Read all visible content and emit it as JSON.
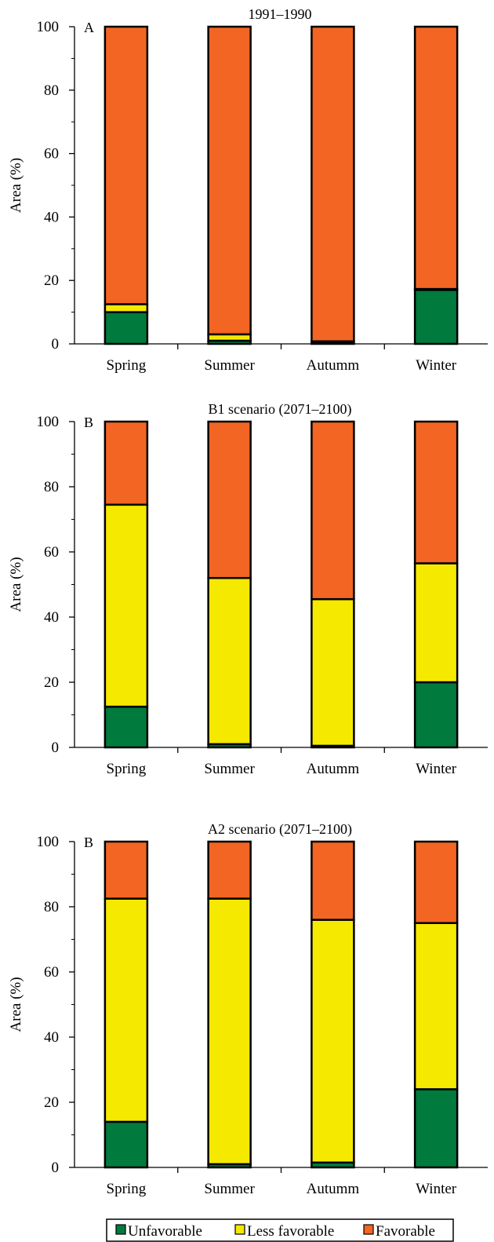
{
  "chart_data": [
    {
      "type": "bar",
      "stacked": true,
      "title": "1991–1990",
      "panel_label": "A",
      "xlabel": "",
      "ylabel": "Area (%)",
      "ylim": [
        0,
        100
      ],
      "y_ticks": [
        "0",
        "20",
        "40",
        "60",
        "80",
        "100"
      ],
      "categories": [
        "Spring",
        "Summer",
        "Autumm",
        "Winter"
      ],
      "series": [
        {
          "name": "Unfavorable",
          "values": [
            10,
            1,
            0.5,
            17
          ]
        },
        {
          "name": "Less favorable",
          "values": [
            2.5,
            2,
            0.3,
            0.3
          ]
        },
        {
          "name": "Favorable",
          "values": [
            87.5,
            97,
            99.2,
            82.7
          ]
        }
      ]
    },
    {
      "type": "bar",
      "stacked": true,
      "title": "B1 scenario (2071–2100)",
      "panel_label": "B",
      "xlabel": "",
      "ylabel": "Area (%)",
      "ylim": [
        0,
        100
      ],
      "y_ticks": [
        "0",
        "20",
        "40",
        "60",
        "80",
        "100"
      ],
      "categories": [
        "Spring",
        "Summer",
        "Autumm",
        "Winter"
      ],
      "series": [
        {
          "name": "Unfavorable",
          "values": [
            12.5,
            1,
            0.5,
            20
          ]
        },
        {
          "name": "Less favorable",
          "values": [
            62,
            51,
            45,
            36.5
          ]
        },
        {
          "name": "Favorable",
          "values": [
            25.5,
            48,
            54.5,
            43.5
          ]
        }
      ]
    },
    {
      "type": "bar",
      "stacked": true,
      "title": "A2 scenario (2071–2100)",
      "panel_label": "B",
      "xlabel": "",
      "ylabel": "Area (%)",
      "ylim": [
        0,
        100
      ],
      "y_ticks": [
        "0",
        "20",
        "40",
        "60",
        "80",
        "100"
      ],
      "categories": [
        "Spring",
        "Summer",
        "Autumm",
        "Winter"
      ],
      "series": [
        {
          "name": "Unfavorable",
          "values": [
            14,
            1,
            1.5,
            24
          ]
        },
        {
          "name": "Less favorable",
          "values": [
            68.5,
            81.5,
            74.5,
            51
          ]
        },
        {
          "name": "Favorable",
          "values": [
            17.5,
            17.5,
            24,
            25
          ]
        }
      ]
    }
  ],
  "legend": {
    "placement": "bottom",
    "items": [
      {
        "label": "Unfavorable",
        "color": "#007a3d"
      },
      {
        "label": "Less favorable",
        "color": "#f5e900"
      },
      {
        "label": "Favorable",
        "color": "#f26522"
      }
    ]
  },
  "colors": {
    "unfavorable": "#007a3d",
    "less_favorable": "#f5e900",
    "favorable": "#f26522"
  }
}
